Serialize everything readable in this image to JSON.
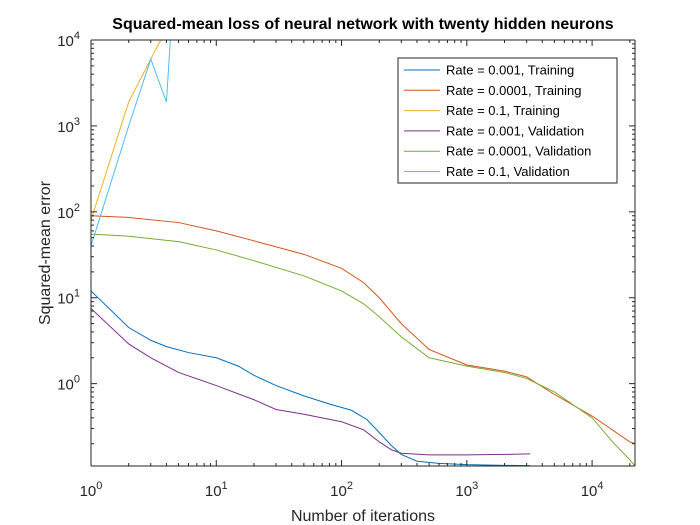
{
  "chart_data": {
    "type": "line",
    "title": "Squared-mean loss of neural network with twenty hidden neurons",
    "xlabel": "Number of iterations",
    "ylabel": "Squared-mean error",
    "xscale": "log",
    "yscale": "log",
    "xlim": [
      1,
      22000
    ],
    "ylim": [
      0.11,
      10000
    ],
    "xticks": [
      {
        "value": 1,
        "base": "10",
        "exp": "0"
      },
      {
        "value": 10,
        "base": "10",
        "exp": "1"
      },
      {
        "value": 100,
        "base": "10",
        "exp": "2"
      },
      {
        "value": 1000,
        "base": "10",
        "exp": "3"
      },
      {
        "value": 10000,
        "base": "10",
        "exp": "4"
      }
    ],
    "yticks": [
      {
        "value": 1,
        "base": "10",
        "exp": "0"
      },
      {
        "value": 10,
        "base": "10",
        "exp": "1"
      },
      {
        "value": 100,
        "base": "10",
        "exp": "2"
      },
      {
        "value": 1000,
        "base": "10",
        "exp": "3"
      },
      {
        "value": 10000,
        "base": "10",
        "exp": "4"
      }
    ],
    "grid": false,
    "legend_position": "top-right",
    "series": [
      {
        "name": "Rate = 0.001, Training",
        "color": "#0072BD",
        "points": [
          [
            1,
            12
          ],
          [
            2,
            4.5
          ],
          [
            3,
            3.2
          ],
          [
            4,
            2.7
          ],
          [
            6,
            2.3
          ],
          [
            10,
            2
          ],
          [
            15,
            1.6
          ],
          [
            20,
            1.25
          ],
          [
            30,
            0.95
          ],
          [
            50,
            0.72
          ],
          [
            80,
            0.58
          ],
          [
            120,
            0.49
          ],
          [
            160,
            0.38
          ],
          [
            200,
            0.27
          ],
          [
            250,
            0.19
          ],
          [
            300,
            0.15
          ],
          [
            400,
            0.125
          ],
          [
            600,
            0.118
          ],
          [
            1000,
            0.114
          ],
          [
            2000,
            0.112
          ],
          [
            3200,
            0.111
          ]
        ]
      },
      {
        "name": "Rate = 0.0001, Training",
        "color": "#D95319",
        "points": [
          [
            1,
            90
          ],
          [
            2,
            86
          ],
          [
            5,
            75
          ],
          [
            10,
            60
          ],
          [
            20,
            46
          ],
          [
            50,
            32
          ],
          [
            100,
            22
          ],
          [
            150,
            15
          ],
          [
            200,
            10
          ],
          [
            300,
            5
          ],
          [
            500,
            2.5
          ],
          [
            1000,
            1.65
          ],
          [
            2000,
            1.4
          ],
          [
            3000,
            1.2
          ],
          [
            5000,
            0.75
          ],
          [
            10000,
            0.42
          ],
          [
            20000,
            0.21
          ],
          [
            22000,
            0.2
          ]
        ]
      },
      {
        "name": "Rate = 0.1, Training",
        "color": "#EDB120",
        "points": [
          [
            1,
            80
          ],
          [
            2,
            1900
          ],
          [
            3,
            6000
          ],
          [
            3.6,
            10000
          ]
        ]
      },
      {
        "name": "Rate = 0.001, Validation",
        "color": "#7E2F8E",
        "points": [
          [
            1,
            7.5
          ],
          [
            2,
            2.9
          ],
          [
            3,
            2
          ],
          [
            5,
            1.35
          ],
          [
            10,
            0.95
          ],
          [
            20,
            0.65
          ],
          [
            30,
            0.5
          ],
          [
            50,
            0.44
          ],
          [
            100,
            0.36
          ],
          [
            150,
            0.29
          ],
          [
            200,
            0.21
          ],
          [
            250,
            0.17
          ],
          [
            300,
            0.155
          ],
          [
            500,
            0.148
          ],
          [
            1000,
            0.148
          ],
          [
            2000,
            0.15
          ],
          [
            3200,
            0.152
          ]
        ]
      },
      {
        "name": "Rate = 0.0001, Validation",
        "color": "#77AC30",
        "points": [
          [
            1,
            55
          ],
          [
            2,
            52
          ],
          [
            5,
            45
          ],
          [
            10,
            36
          ],
          [
            20,
            27
          ],
          [
            50,
            18
          ],
          [
            100,
            12
          ],
          [
            150,
            8.5
          ],
          [
            200,
            6
          ],
          [
            300,
            3.5
          ],
          [
            500,
            2
          ],
          [
            1000,
            1.6
          ],
          [
            2000,
            1.35
          ],
          [
            3000,
            1.15
          ],
          [
            5000,
            0.8
          ],
          [
            10000,
            0.4
          ],
          [
            15000,
            0.2
          ],
          [
            20000,
            0.13
          ],
          [
            22000,
            0.11
          ]
        ]
      },
      {
        "name": "Rate = 0.1, Validation",
        "color": "#4DBEEE",
        "points": [
          [
            1,
            40
          ],
          [
            2,
            1000
          ],
          [
            3,
            6000
          ],
          [
            4,
            1900
          ],
          [
            4.3,
            10000
          ]
        ]
      }
    ]
  }
}
